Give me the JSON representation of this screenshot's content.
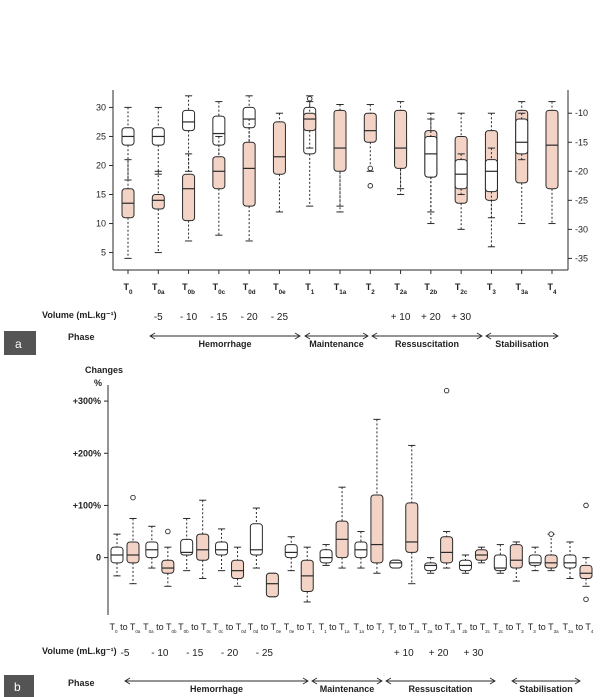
{
  "colors": {
    "filled": "#f2d3c6",
    "open": "#ffffff",
    "stroke": "#2a2a2a"
  },
  "chart_data": [
    {
      "panel": "a",
      "type": "box",
      "xlabel_rows": [
        {
          "label": "Volume (mL.kg⁻¹)",
          "values": [
            "-5",
            "- 10",
            "- 15",
            "- 20",
            "- 25",
            "+ 10",
            "+ 20",
            "+ 30"
          ]
        },
        {
          "label": "Phase",
          "values": [
            "Hemorrhage",
            "Maintenance",
            "Ressuscitation",
            "Stabilisation"
          ]
        }
      ],
      "categories": [
        {
          "base": "T",
          "sub": "0"
        },
        {
          "base": "T",
          "sub": "0a"
        },
        {
          "base": "T",
          "sub": "0b"
        },
        {
          "base": "T",
          "sub": "0c"
        },
        {
          "base": "T",
          "sub": "0d"
        },
        {
          "base": "T",
          "sub": "0e"
        },
        {
          "base": "T",
          "sub": "1"
        },
        {
          "base": "T",
          "sub": "1a"
        },
        {
          "base": "T",
          "sub": "2"
        },
        {
          "base": "T",
          "sub": "2a"
        },
        {
          "base": "T",
          "sub": "2b"
        },
        {
          "base": "T",
          "sub": "2c"
        },
        {
          "base": "T",
          "sub": "3"
        },
        {
          "base": "T",
          "sub": "3a"
        },
        {
          "base": "T",
          "sub": "4"
        }
      ],
      "left_axis": {
        "ticks": [
          "5",
          "10",
          "15",
          "20",
          "25",
          "30"
        ],
        "ylim": [
          2,
          33
        ]
      },
      "right_axis": {
        "ticks": [
          "-10",
          "-15",
          "-20",
          "-25",
          "-30",
          "-35"
        ],
        "ylim": [
          -37,
          -6
        ]
      },
      "series": [
        {
          "axis": "left",
          "style": "open",
          "points": [
            {
              "i": 0,
              "low": 17.5,
              "q1": 23.5,
              "median": 25,
              "q3": 26.5,
              "high": 30
            },
            {
              "i": 1,
              "low": 18.5,
              "q1": 23.5,
              "median": 25,
              "q3": 26.5,
              "high": 30
            },
            {
              "i": 2,
              "low": 19,
              "q1": 26,
              "median": 27.5,
              "q3": 29.5,
              "high": 32
            },
            {
              "i": 3,
              "low": 19,
              "q1": 23.5,
              "median": 25.5,
              "q3": 28.5,
              "high": 31
            },
            {
              "i": 4,
              "low": 19,
              "q1": 26.5,
              "median": 28,
              "q3": 30,
              "high": 32
            },
            {
              "i": 6,
              "low": 13,
              "q1": 22,
              "median": 26.5,
              "q3": 30,
              "high": 32
            },
            {
              "i": 7,
              "low": 13,
              "q1": 19.5,
              "median": 23,
              "q3": 27,
              "high": 30.5
            },
            {
              "i": 9,
              "low": 15,
              "q1": 20,
              "median": 23,
              "q3": 25,
              "high": 28
            }
          ]
        },
        {
          "axis": "right",
          "style": "filled",
          "points": [
            {
              "i": 0,
              "low": -35,
              "q1": -28,
              "median": -25.5,
              "q3": -23,
              "high": -18
            },
            {
              "i": 1,
              "low": -34,
              "q1": -26.5,
              "median": -25,
              "q3": -24,
              "high": -20
            },
            {
              "i": 2,
              "low": -32,
              "q1": -28.5,
              "median": -23,
              "q3": -20.5,
              "high": -17
            },
            {
              "i": 3,
              "low": -31,
              "q1": -23,
              "median": -20,
              "q3": -17.5,
              "high": -14
            },
            {
              "i": 4,
              "low": -32,
              "q1": -26,
              "median": -19.5,
              "q3": -15,
              "high": -11
            },
            {
              "i": 5,
              "low": -27,
              "q1": -20.5,
              "median": -17.5,
              "q3": -11.5,
              "high": -10
            },
            {
              "i": 6,
              "low": -16,
              "q1": -13,
              "median": -11,
              "q3": -10,
              "high": -8
            },
            {
              "i": 7,
              "low": -27,
              "q1": -20,
              "median": -16,
              "q3": -9.5,
              "high": -8.5
            },
            {
              "i": 8,
              "low": -20,
              "q1": -15,
              "median": -13,
              "q3": -10,
              "high": -8.5
            },
            {
              "i": 9,
              "low": -23,
              "q1": -19.5,
              "median": -16,
              "q3": -9.5,
              "high": -8
            },
            {
              "i": 10,
              "low": -29,
              "q1": -21,
              "median": -17,
              "q3": -13,
              "high": -10
            },
            {
              "i": 11,
              "low": -30,
              "q1": -25.5,
              "median": -20,
              "q3": -14,
              "high": -10
            },
            {
              "i": 12,
              "low": -33,
              "q1": -25,
              "median": -20,
              "q3": -13,
              "high": -10
            },
            {
              "i": 13,
              "low": -29,
              "q1": -22,
              "median": -16.5,
              "q3": -9.5,
              "high": -8
            },
            {
              "i": 14,
              "low": -29,
              "q1": -23,
              "median": -15.5,
              "q3": -9.5,
              "high": -8
            }
          ]
        },
        {
          "axis": "right",
          "style": "open",
          "points": [
            {
              "i": 10,
              "low": -27,
              "q1": -21,
              "median": -17,
              "q3": -14,
              "high": -11
            },
            {
              "i": 11,
              "low": -24,
              "q1": -23,
              "median": -20.5,
              "q3": -18,
              "high": -17
            },
            {
              "i": 12,
              "low": -28,
              "q1": -23.5,
              "median": -20,
              "q3": -18,
              "high": -16
            },
            {
              "i": 13,
              "low": -18,
              "q1": -17,
              "median": -15,
              "q3": -11,
              "high": -10
            }
          ]
        }
      ],
      "outliers": [
        {
          "axis": "left",
          "i": 6,
          "value": 31.5
        },
        {
          "axis": "right",
          "i": 8,
          "value": -19.5
        },
        {
          "axis": "right",
          "i": 8,
          "value": -22.5
        }
      ]
    },
    {
      "panel": "b",
      "type": "box",
      "ylabel": "Changes\n%",
      "xlabel_rows": [
        {
          "label": "Volume (mL.kg⁻¹)",
          "values": [
            "-5",
            "- 10",
            "- 15",
            "- 20",
            "- 25",
            "+ 10",
            "+ 20",
            "+ 30"
          ]
        },
        {
          "label": "Phase",
          "values": [
            "Hemorrhage",
            "Maintenance",
            "Ressuscitation",
            "Stabilisation"
          ]
        }
      ],
      "categories": [
        {
          "a": "T",
          "as": "0",
          "b": "T",
          "bs": "0a"
        },
        {
          "a": "T",
          "as": "0a",
          "b": "T",
          "bs": "0b"
        },
        {
          "a": "T",
          "as": "0b",
          "b": "T",
          "bs": "0c"
        },
        {
          "a": "T",
          "as": "0c",
          "b": "T",
          "bs": "0d"
        },
        {
          "a": "T",
          "as": "0d",
          "b": "T",
          "bs": "0e"
        },
        {
          "a": "T",
          "as": "0e",
          "b": "T",
          "bs": "1"
        },
        {
          "a": "T",
          "as": "1",
          "b": "T",
          "bs": "1a"
        },
        {
          "a": "T",
          "as": "1a",
          "b": "T",
          "bs": "2"
        },
        {
          "a": "T",
          "as": "2",
          "b": "T",
          "bs": "2a"
        },
        {
          "a": "T",
          "as": "2a",
          "b": "T",
          "bs": "2b"
        },
        {
          "a": "T",
          "as": "2b",
          "b": "T",
          "bs": "2c"
        },
        {
          "a": "T",
          "as": "2c",
          "b": "T",
          "bs": "3"
        },
        {
          "a": "T",
          "as": "3",
          "b": "T",
          "bs": "3a"
        },
        {
          "a": "T",
          "as": "3a",
          "b": "T",
          "bs": "4"
        }
      ],
      "y_ticks": [
        {
          "value": 300,
          "label": "+300%"
        },
        {
          "value": 200,
          "label": "+200%"
        },
        {
          "value": 100,
          "label": "+100%"
        },
        {
          "value": 0,
          "label": "0"
        }
      ],
      "ylim": [
        -110,
        350
      ],
      "series": [
        {
          "style": "open",
          "points": [
            {
              "i": 0,
              "low": -35,
              "q1": -10,
              "median": 5,
              "q3": 20,
              "high": 45
            },
            {
              "i": 1,
              "low": -20,
              "q1": 0,
              "median": 15,
              "q3": 30,
              "high": 60
            },
            {
              "i": 2,
              "low": -25,
              "q1": 5,
              "median": 10,
              "q3": 35,
              "high": 75
            },
            {
              "i": 3,
              "low": -25,
              "q1": 5,
              "median": 15,
              "q3": 30,
              "high": 55
            },
            {
              "i": 4,
              "low": -20,
              "q1": 5,
              "median": 15,
              "q3": 65,
              "high": 95
            },
            {
              "i": 5,
              "low": -25,
              "q1": 0,
              "median": 10,
              "q3": 25,
              "high": 40
            },
            {
              "i": 6,
              "low": -15,
              "q1": -10,
              "median": 0,
              "q3": 15,
              "high": 25
            },
            {
              "i": 7,
              "low": -20,
              "q1": 0,
              "median": 15,
              "q3": 30,
              "high": 50
            },
            {
              "i": 8,
              "low": -20,
              "q1": -20,
              "median": -10,
              "q3": -5,
              "high": -5
            },
            {
              "i": 9,
              "low": -30,
              "q1": -25,
              "median": -15,
              "q3": -10,
              "high": 0
            },
            {
              "i": 10,
              "low": -30,
              "q1": -25,
              "median": -15,
              "q3": -5,
              "high": 5
            },
            {
              "i": 11,
              "low": -30,
              "q1": -25,
              "median": -20,
              "q3": 5,
              "high": 25
            },
            {
              "i": 12,
              "low": -25,
              "q1": -15,
              "median": -10,
              "q3": 5,
              "high": 20
            },
            {
              "i": 13,
              "low": -40,
              "q1": -20,
              "median": -10,
              "q3": 5,
              "high": 30
            }
          ]
        },
        {
          "style": "filled",
          "points": [
            {
              "i": 0,
              "low": -50,
              "q1": -10,
              "median": 5,
              "q3": 30,
              "high": 75
            },
            {
              "i": 1,
              "low": -55,
              "q1": -30,
              "median": -20,
              "q3": -5,
              "high": 20
            },
            {
              "i": 2,
              "low": -40,
              "q1": -5,
              "median": 15,
              "q3": 45,
              "high": 110
            },
            {
              "i": 3,
              "low": -55,
              "q1": -40,
              "median": -25,
              "q3": -5,
              "high": 20
            },
            {
              "i": 4,
              "low": -75,
              "q1": -75,
              "median": -50,
              "q3": -30,
              "high": -30
            },
            {
              "i": 5,
              "low": -85,
              "q1": -65,
              "median": -35,
              "q3": -5,
              "high": 20
            },
            {
              "i": 6,
              "low": -20,
              "q1": 0,
              "median": 35,
              "q3": 70,
              "high": 135
            },
            {
              "i": 7,
              "low": -30,
              "q1": -10,
              "median": 25,
              "q3": 120,
              "high": 265
            },
            {
              "i": 8,
              "low": -50,
              "q1": 10,
              "median": 30,
              "q3": 105,
              "high": 215
            },
            {
              "i": 9,
              "low": -20,
              "q1": -10,
              "median": 10,
              "q3": 40,
              "high": 50
            },
            {
              "i": 10,
              "low": -10,
              "q1": -5,
              "median": 5,
              "q3": 15,
              "high": 20
            },
            {
              "i": 11,
              "low": -45,
              "q1": -20,
              "median": -5,
              "q3": 25,
              "high": 30
            },
            {
              "i": 12,
              "low": -25,
              "q1": -20,
              "median": -10,
              "q3": 5,
              "high": 45
            },
            {
              "i": 13,
              "low": -55,
              "q1": -40,
              "median": -30,
              "q3": -15,
              "high": 0
            }
          ]
        }
      ],
      "outliers": [
        {
          "i": 0,
          "value": 115
        },
        {
          "i": 1,
          "value": 50
        },
        {
          "i": 9,
          "value": 320
        },
        {
          "i": 12,
          "value": 45
        },
        {
          "i": 13,
          "value": 100
        },
        {
          "i": 13,
          "value": -80
        }
      ]
    }
  ],
  "panel_labels": [
    "a",
    "b"
  ]
}
